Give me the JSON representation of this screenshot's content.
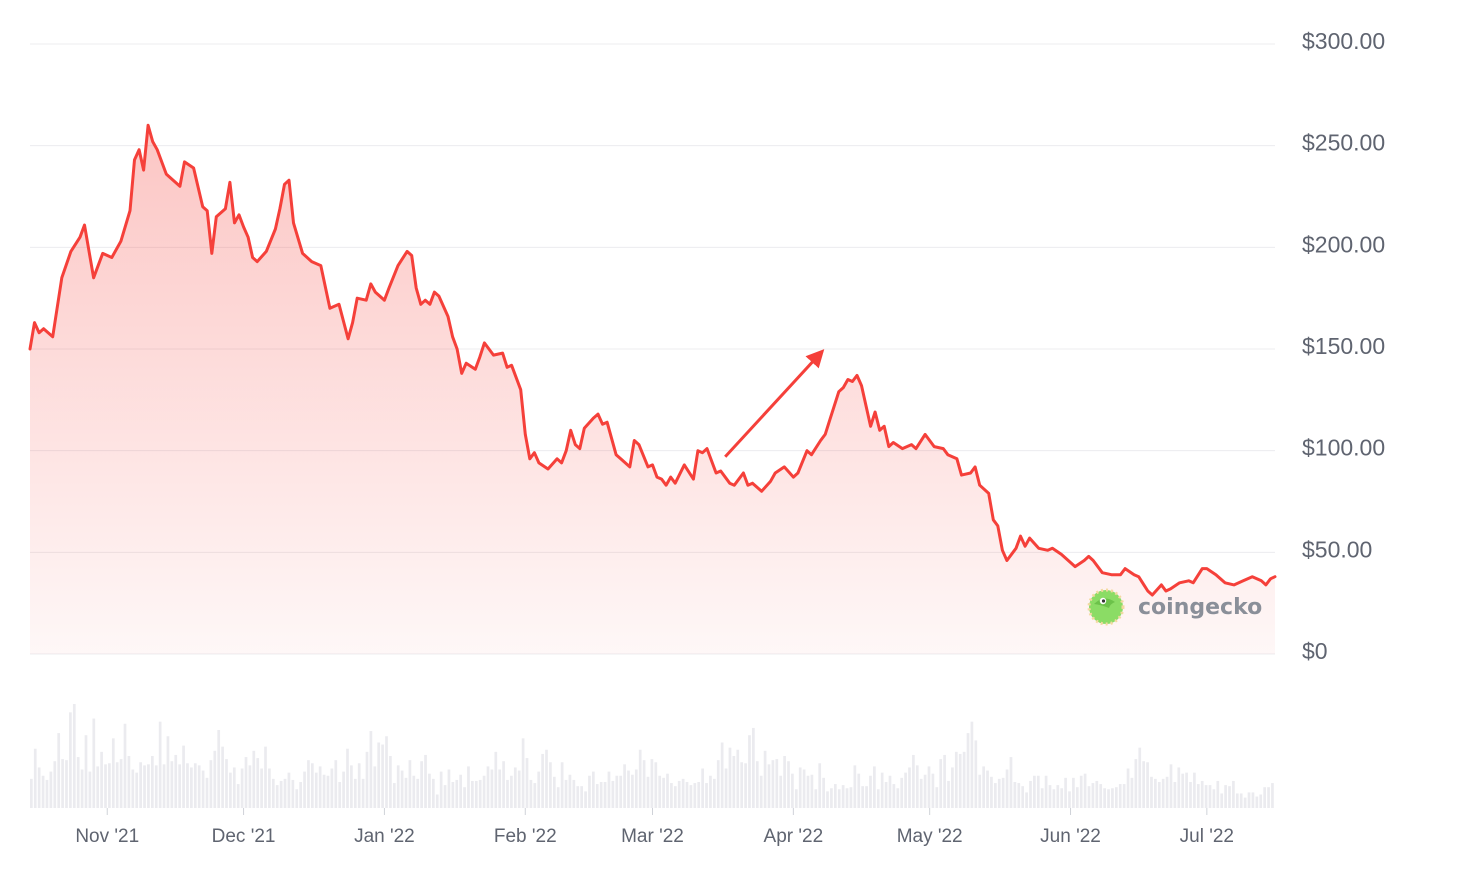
{
  "chart_data": {
    "type": "area",
    "ylim": [
      0,
      300
    ],
    "y_ticks": [
      "$300.00",
      "$250.00",
      "$200.00",
      "$150.00",
      "$100.00",
      "$50.00",
      "$0"
    ],
    "y_tick_values": [
      300,
      250,
      200,
      150,
      100,
      50,
      0
    ],
    "x_ticks": [
      {
        "label": "Nov '21",
        "date": "2021-11-01"
      },
      {
        "label": "Dec '21",
        "date": "2021-12-01"
      },
      {
        "label": "Jan '22",
        "date": "2022-01-01"
      },
      {
        "label": "Feb '22",
        "date": "2022-02-01"
      },
      {
        "label": "Mar '22",
        "date": "2022-03-01"
      },
      {
        "label": "Apr '22",
        "date": "2022-04-01"
      },
      {
        "label": "May '22",
        "date": "2022-05-01"
      },
      {
        "label": "Jun '22",
        "date": "2022-06-01"
      },
      {
        "label": "Jul '22",
        "date": "2022-07-01"
      }
    ],
    "x_range": [
      "2021-10-15",
      "2022-07-16"
    ],
    "grid": true,
    "colors": {
      "line": "#f5403a",
      "fill": "#f5403a",
      "volume": "#ebebef",
      "grid": "#ececef",
      "annotation_arrow": "#f5403a"
    },
    "series": [
      {
        "values": [
          [
            "2021-10-15",
            150
          ],
          [
            "2021-10-16",
            163
          ],
          [
            "2021-10-17",
            158
          ],
          [
            "2021-10-18",
            160
          ],
          [
            "2021-10-20",
            156
          ],
          [
            "2021-10-22",
            185
          ],
          [
            "2021-10-24",
            198
          ],
          [
            "2021-10-26",
            205
          ],
          [
            "2021-10-27",
            211
          ],
          [
            "2021-10-29",
            185
          ],
          [
            "2021-10-31",
            197
          ],
          [
            "2021-11-02",
            195
          ],
          [
            "2021-11-04",
            203
          ],
          [
            "2021-11-06",
            218
          ],
          [
            "2021-11-07",
            243
          ],
          [
            "2021-11-08",
            248
          ],
          [
            "2021-11-09",
            238
          ],
          [
            "2021-11-10",
            260
          ],
          [
            "2021-11-11",
            252
          ],
          [
            "2021-11-12",
            248
          ],
          [
            "2021-11-14",
            236
          ],
          [
            "2021-11-15",
            234
          ],
          [
            "2021-11-17",
            230
          ],
          [
            "2021-11-18",
            242
          ],
          [
            "2021-11-20",
            239
          ],
          [
            "2021-11-22",
            220
          ],
          [
            "2021-11-23",
            218
          ],
          [
            "2021-11-24",
            197
          ],
          [
            "2021-11-25",
            215
          ],
          [
            "2021-11-27",
            219
          ],
          [
            "2021-11-28",
            232
          ],
          [
            "2021-11-29",
            212
          ],
          [
            "2021-11-30",
            216
          ],
          [
            "2021-12-01",
            210
          ],
          [
            "2021-12-02",
            205
          ],
          [
            "2021-12-03",
            195
          ],
          [
            "2021-12-04",
            193
          ],
          [
            "2021-12-06",
            198
          ],
          [
            "2021-12-08",
            209
          ],
          [
            "2021-12-09",
            219
          ],
          [
            "2021-12-10",
            231
          ],
          [
            "2021-12-11",
            233
          ],
          [
            "2021-12-12",
            212
          ],
          [
            "2021-12-14",
            197
          ],
          [
            "2021-12-16",
            193
          ],
          [
            "2021-12-18",
            191
          ],
          [
            "2021-12-20",
            170
          ],
          [
            "2021-12-22",
            172
          ],
          [
            "2021-12-24",
            155
          ],
          [
            "2021-12-25",
            163
          ],
          [
            "2021-12-26",
            175
          ],
          [
            "2021-12-28",
            174
          ],
          [
            "2021-12-29",
            182
          ],
          [
            "2021-12-30",
            178
          ],
          [
            "2022-01-01",
            174
          ],
          [
            "2022-01-02",
            180
          ],
          [
            "2022-01-04",
            191
          ],
          [
            "2022-01-06",
            198
          ],
          [
            "2022-01-07",
            196
          ],
          [
            "2022-01-08",
            180
          ],
          [
            "2022-01-09",
            172
          ],
          [
            "2022-01-10",
            174
          ],
          [
            "2022-01-11",
            172
          ],
          [
            "2022-01-12",
            178
          ],
          [
            "2022-01-13",
            176
          ],
          [
            "2022-01-15",
            166
          ],
          [
            "2022-01-16",
            156
          ],
          [
            "2022-01-17",
            150
          ],
          [
            "2022-01-18",
            138
          ],
          [
            "2022-01-19",
            143
          ],
          [
            "2022-01-21",
            140
          ],
          [
            "2022-01-22",
            146
          ],
          [
            "2022-01-23",
            153
          ],
          [
            "2022-01-25",
            147
          ],
          [
            "2022-01-27",
            148
          ],
          [
            "2022-01-28",
            141
          ],
          [
            "2022-01-29",
            142
          ],
          [
            "2022-01-31",
            130
          ],
          [
            "2022-02-01",
            108
          ],
          [
            "2022-02-02",
            96
          ],
          [
            "2022-02-03",
            99
          ],
          [
            "2022-02-04",
            94
          ],
          [
            "2022-02-06",
            91
          ],
          [
            "2022-02-08",
            96
          ],
          [
            "2022-02-09",
            94
          ],
          [
            "2022-02-10",
            100
          ],
          [
            "2022-02-11",
            110
          ],
          [
            "2022-02-12",
            103
          ],
          [
            "2022-02-13",
            101
          ],
          [
            "2022-02-14",
            111
          ],
          [
            "2022-02-16",
            116
          ],
          [
            "2022-02-17",
            118
          ],
          [
            "2022-02-18",
            113
          ],
          [
            "2022-02-19",
            114
          ],
          [
            "2022-02-21",
            98
          ],
          [
            "2022-02-22",
            96
          ],
          [
            "2022-02-24",
            92
          ],
          [
            "2022-02-25",
            105
          ],
          [
            "2022-02-26",
            103
          ],
          [
            "2022-02-28",
            92
          ],
          [
            "2022-03-01",
            93
          ],
          [
            "2022-03-02",
            87
          ],
          [
            "2022-03-03",
            86
          ],
          [
            "2022-03-04",
            83
          ],
          [
            "2022-03-05",
            87
          ],
          [
            "2022-03-06",
            84
          ],
          [
            "2022-03-08",
            93
          ],
          [
            "2022-03-10",
            86
          ],
          [
            "2022-03-11",
            100
          ],
          [
            "2022-03-12",
            99
          ],
          [
            "2022-03-13",
            101
          ],
          [
            "2022-03-15",
            89
          ],
          [
            "2022-03-16",
            90
          ],
          [
            "2022-03-18",
            84
          ],
          [
            "2022-03-19",
            83
          ],
          [
            "2022-03-21",
            89
          ],
          [
            "2022-03-22",
            83
          ],
          [
            "2022-03-23",
            84
          ],
          [
            "2022-03-25",
            80
          ],
          [
            "2022-03-27",
            85
          ],
          [
            "2022-03-28",
            89
          ],
          [
            "2022-03-30",
            92
          ],
          [
            "2022-04-01",
            87
          ],
          [
            "2022-04-02",
            89
          ],
          [
            "2022-04-04",
            100
          ],
          [
            "2022-04-05",
            98
          ],
          [
            "2022-04-07",
            105
          ],
          [
            "2022-04-08",
            108
          ],
          [
            "2022-04-09",
            115
          ],
          [
            "2022-04-11",
            129
          ],
          [
            "2022-04-12",
            131
          ],
          [
            "2022-04-13",
            135
          ],
          [
            "2022-04-14",
            134
          ],
          [
            "2022-04-15",
            137
          ],
          [
            "2022-04-16",
            132
          ],
          [
            "2022-04-18",
            112
          ],
          [
            "2022-04-19",
            119
          ],
          [
            "2022-04-20",
            110
          ],
          [
            "2022-04-21",
            112
          ],
          [
            "2022-04-22",
            102
          ],
          [
            "2022-04-23",
            104
          ],
          [
            "2022-04-25",
            101
          ],
          [
            "2022-04-27",
            103
          ],
          [
            "2022-04-28",
            101
          ],
          [
            "2022-04-30",
            108
          ],
          [
            "2022-05-02",
            102
          ],
          [
            "2022-05-04",
            101
          ],
          [
            "2022-05-05",
            98
          ],
          [
            "2022-05-07",
            96
          ],
          [
            "2022-05-08",
            88
          ],
          [
            "2022-05-10",
            89
          ],
          [
            "2022-05-11",
            92
          ],
          [
            "2022-05-12",
            83
          ],
          [
            "2022-05-14",
            79
          ],
          [
            "2022-05-15",
            66
          ],
          [
            "2022-05-16",
            63
          ],
          [
            "2022-05-17",
            51
          ],
          [
            "2022-05-18",
            46
          ],
          [
            "2022-05-20",
            52
          ],
          [
            "2022-05-21",
            58
          ],
          [
            "2022-05-22",
            53
          ],
          [
            "2022-05-23",
            57
          ],
          [
            "2022-05-25",
            52
          ],
          [
            "2022-05-27",
            51
          ],
          [
            "2022-05-28",
            52
          ],
          [
            "2022-05-30",
            49
          ],
          [
            "2022-06-01",
            45
          ],
          [
            "2022-06-02",
            43
          ],
          [
            "2022-06-04",
            46
          ],
          [
            "2022-06-05",
            48
          ],
          [
            "2022-06-06",
            46
          ],
          [
            "2022-06-08",
            40
          ],
          [
            "2022-06-10",
            39
          ],
          [
            "2022-06-12",
            39
          ],
          [
            "2022-06-13",
            42
          ],
          [
            "2022-06-15",
            39
          ],
          [
            "2022-06-16",
            38
          ],
          [
            "2022-06-18",
            31
          ],
          [
            "2022-06-19",
            29
          ],
          [
            "2022-06-21",
            34
          ],
          [
            "2022-06-22",
            31
          ],
          [
            "2022-06-23",
            32
          ],
          [
            "2022-06-25",
            35
          ],
          [
            "2022-06-27",
            36
          ],
          [
            "2022-06-28",
            35
          ],
          [
            "2022-06-30",
            42
          ],
          [
            "2022-07-01",
            42
          ],
          [
            "2022-07-03",
            39
          ],
          [
            "2022-07-05",
            35
          ],
          [
            "2022-07-07",
            34
          ],
          [
            "2022-07-09",
            36
          ],
          [
            "2022-07-11",
            38
          ],
          [
            "2022-07-13",
            36
          ],
          [
            "2022-07-14",
            34
          ],
          [
            "2022-07-15",
            37
          ],
          [
            "2022-07-16",
            38
          ]
        ]
      }
    ],
    "volume": {
      "range": [
        "2021-10-15",
        "2022-07-16"
      ],
      "relative_values": [
        0.28,
        0.57,
        0.39,
        0.31,
        0.27,
        0.35,
        0.45,
        0.72,
        0.47,
        0.46,
        0.92,
        1.0,
        0.49,
        0.37,
        0.7,
        0.35,
        0.86,
        0.4,
        0.54,
        0.42,
        0.43,
        0.67,
        0.44,
        0.47,
        0.81,
        0.5,
        0.37,
        0.34,
        0.44,
        0.41,
        0.42,
        0.5,
        0.41,
        0.83,
        0.42,
        0.69,
        0.45,
        0.51,
        0.42,
        0.6,
        0.43,
        0.39,
        0.43,
        0.41,
        0.36,
        0.29,
        0.46,
        0.55,
        0.75,
        0.59,
        0.47,
        0.34,
        0.39,
        0.23,
        0.38,
        0.49,
        0.41,
        0.55,
        0.48,
        0.38,
        0.59,
        0.38,
        0.28,
        0.22,
        0.26,
        0.28,
        0.34,
        0.27,
        0.18,
        0.25,
        0.35,
        0.46,
        0.43,
        0.34,
        0.4,
        0.32,
        0.31,
        0.38,
        0.46,
        0.25,
        0.35,
        0.57,
        0.41,
        0.28,
        0.43,
        0.28,
        0.54,
        0.74,
        0.4,
        0.63,
        0.61,
        0.69,
        0.5,
        0.24,
        0.41,
        0.36,
        0.29,
        0.46,
        0.31,
        0.28,
        0.45,
        0.51,
        0.33,
        0.28,
        0.13,
        0.35,
        0.22,
        0.37,
        0.25,
        0.27,
        0.32,
        0.2,
        0.4,
        0.26,
        0.26,
        0.27,
        0.31,
        0.4,
        0.37,
        0.54,
        0.37,
        0.45,
        0.27,
        0.31,
        0.39,
        0.36,
        0.67,
        0.48,
        0.27,
        0.24,
        0.35,
        0.52,
        0.56,
        0.44,
        0.3,
        0.2,
        0.44,
        0.27,
        0.32,
        0.27,
        0.21,
        0.21,
        0.16,
        0.31,
        0.35,
        0.23,
        0.25,
        0.25,
        0.35,
        0.26,
        0.31,
        0.31,
        0.42,
        0.36,
        0.32,
        0.37,
        0.56,
        0.46,
        0.3,
        0.47,
        0.44,
        0.31,
        0.29,
        0.33,
        0.24,
        0.21,
        0.26,
        0.28,
        0.25,
        0.22,
        0.24,
        0.25,
        0.38,
        0.24,
        0.31,
        0.28,
        0.46,
        0.63,
        0.38,
        0.58,
        0.5,
        0.56,
        0.44,
        0.43,
        0.7,
        0.77,
        0.45,
        0.31,
        0.55,
        0.42,
        0.46,
        0.47,
        0.31,
        0.5,
        0.45,
        0.33,
        0.18,
        0.39,
        0.37,
        0.31,
        0.32,
        0.18,
        0.43,
        0.29,
        0.16,
        0.19,
        0.23,
        0.18,
        0.22,
        0.19,
        0.2,
        0.41,
        0.33,
        0.21,
        0.21,
        0.31,
        0.4,
        0.18,
        0.34,
        0.25,
        0.31,
        0.23,
        0.19,
        0.29,
        0.34,
        0.39,
        0.51,
        0.41,
        0.28,
        0.32,
        0.4,
        0.33,
        0.2,
        0.47,
        0.51,
        0.26,
        0.39,
        0.54,
        0.52,
        0.54,
        0.72,
        0.83,
        0.65,
        0.32,
        0.4,
        0.36,
        0.3,
        0.24,
        0.28,
        0.29,
        0.37,
        0.49,
        0.25,
        0.24,
        0.21,
        0.15,
        0.26,
        0.31,
        0.31,
        0.19,
        0.31,
        0.22,
        0.18,
        0.22,
        0.19,
        0.29,
        0.16,
        0.29,
        0.2,
        0.31,
        0.33,
        0.21,
        0.24,
        0.26,
        0.23,
        0.19,
        0.18,
        0.19,
        0.2,
        0.23,
        0.23,
        0.38,
        0.29,
        0.47,
        0.58,
        0.45,
        0.44,
        0.3,
        0.28,
        0.25,
        0.28,
        0.3,
        0.42,
        0.25,
        0.39,
        0.33,
        0.34,
        0.25,
        0.34,
        0.23,
        0.26,
        0.22,
        0.22,
        0.18,
        0.26,
        0.14,
        0.22,
        0.21,
        0.26,
        0.14,
        0.14,
        0.1,
        0.15,
        0.15,
        0.11,
        0.13,
        0.2,
        0.2,
        0.24
      ]
    },
    "annotation": {
      "type": "arrow",
      "from": [
        "2022-03-17",
        97
      ],
      "to": [
        "2022-04-07",
        148
      ]
    }
  },
  "watermark": {
    "text": "coingecko",
    "icon": "gecko-icon"
  }
}
